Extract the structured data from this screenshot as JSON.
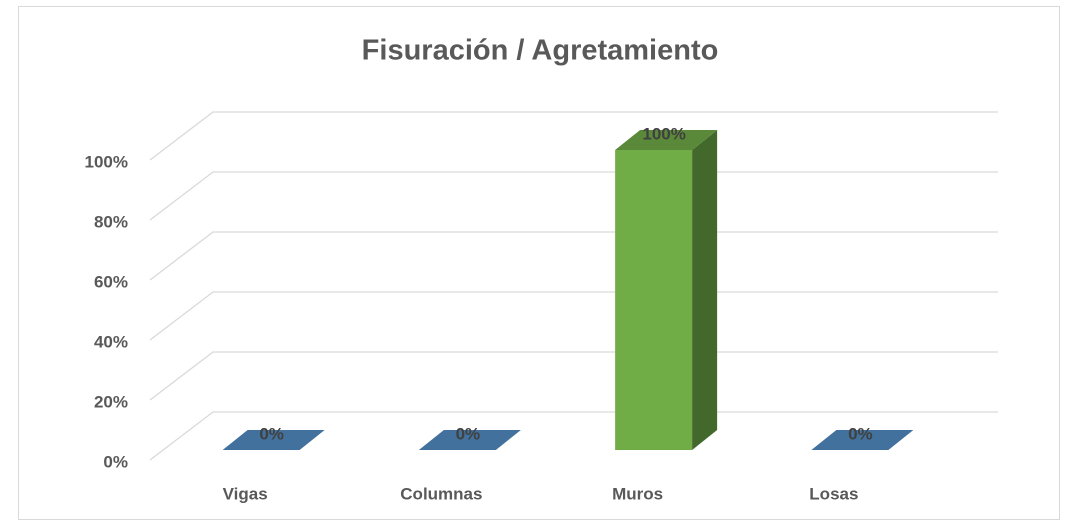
{
  "chart_data": {
    "type": "bar3d",
    "title": "Fisuración  / Agretamiento",
    "categories": [
      "Vigas",
      "Columnas",
      "Muros",
      "Losas"
    ],
    "values": [
      0,
      0,
      100,
      0
    ],
    "value_labels": [
      "0%",
      "0%",
      "100%",
      "0%"
    ],
    "colors": [
      "#41719c",
      "#41719c",
      "#70ad47",
      "#41719c"
    ],
    "ylim": [
      0,
      100
    ],
    "yticks": [
      {
        "value": 0,
        "label": "0%"
      },
      {
        "value": 20,
        "label": "20%"
      },
      {
        "value": 40,
        "label": "40%"
      },
      {
        "value": 60,
        "label": "60%"
      },
      {
        "value": 80,
        "label": "80%"
      },
      {
        "value": 100,
        "label": "100%"
      }
    ],
    "grid": true
  }
}
